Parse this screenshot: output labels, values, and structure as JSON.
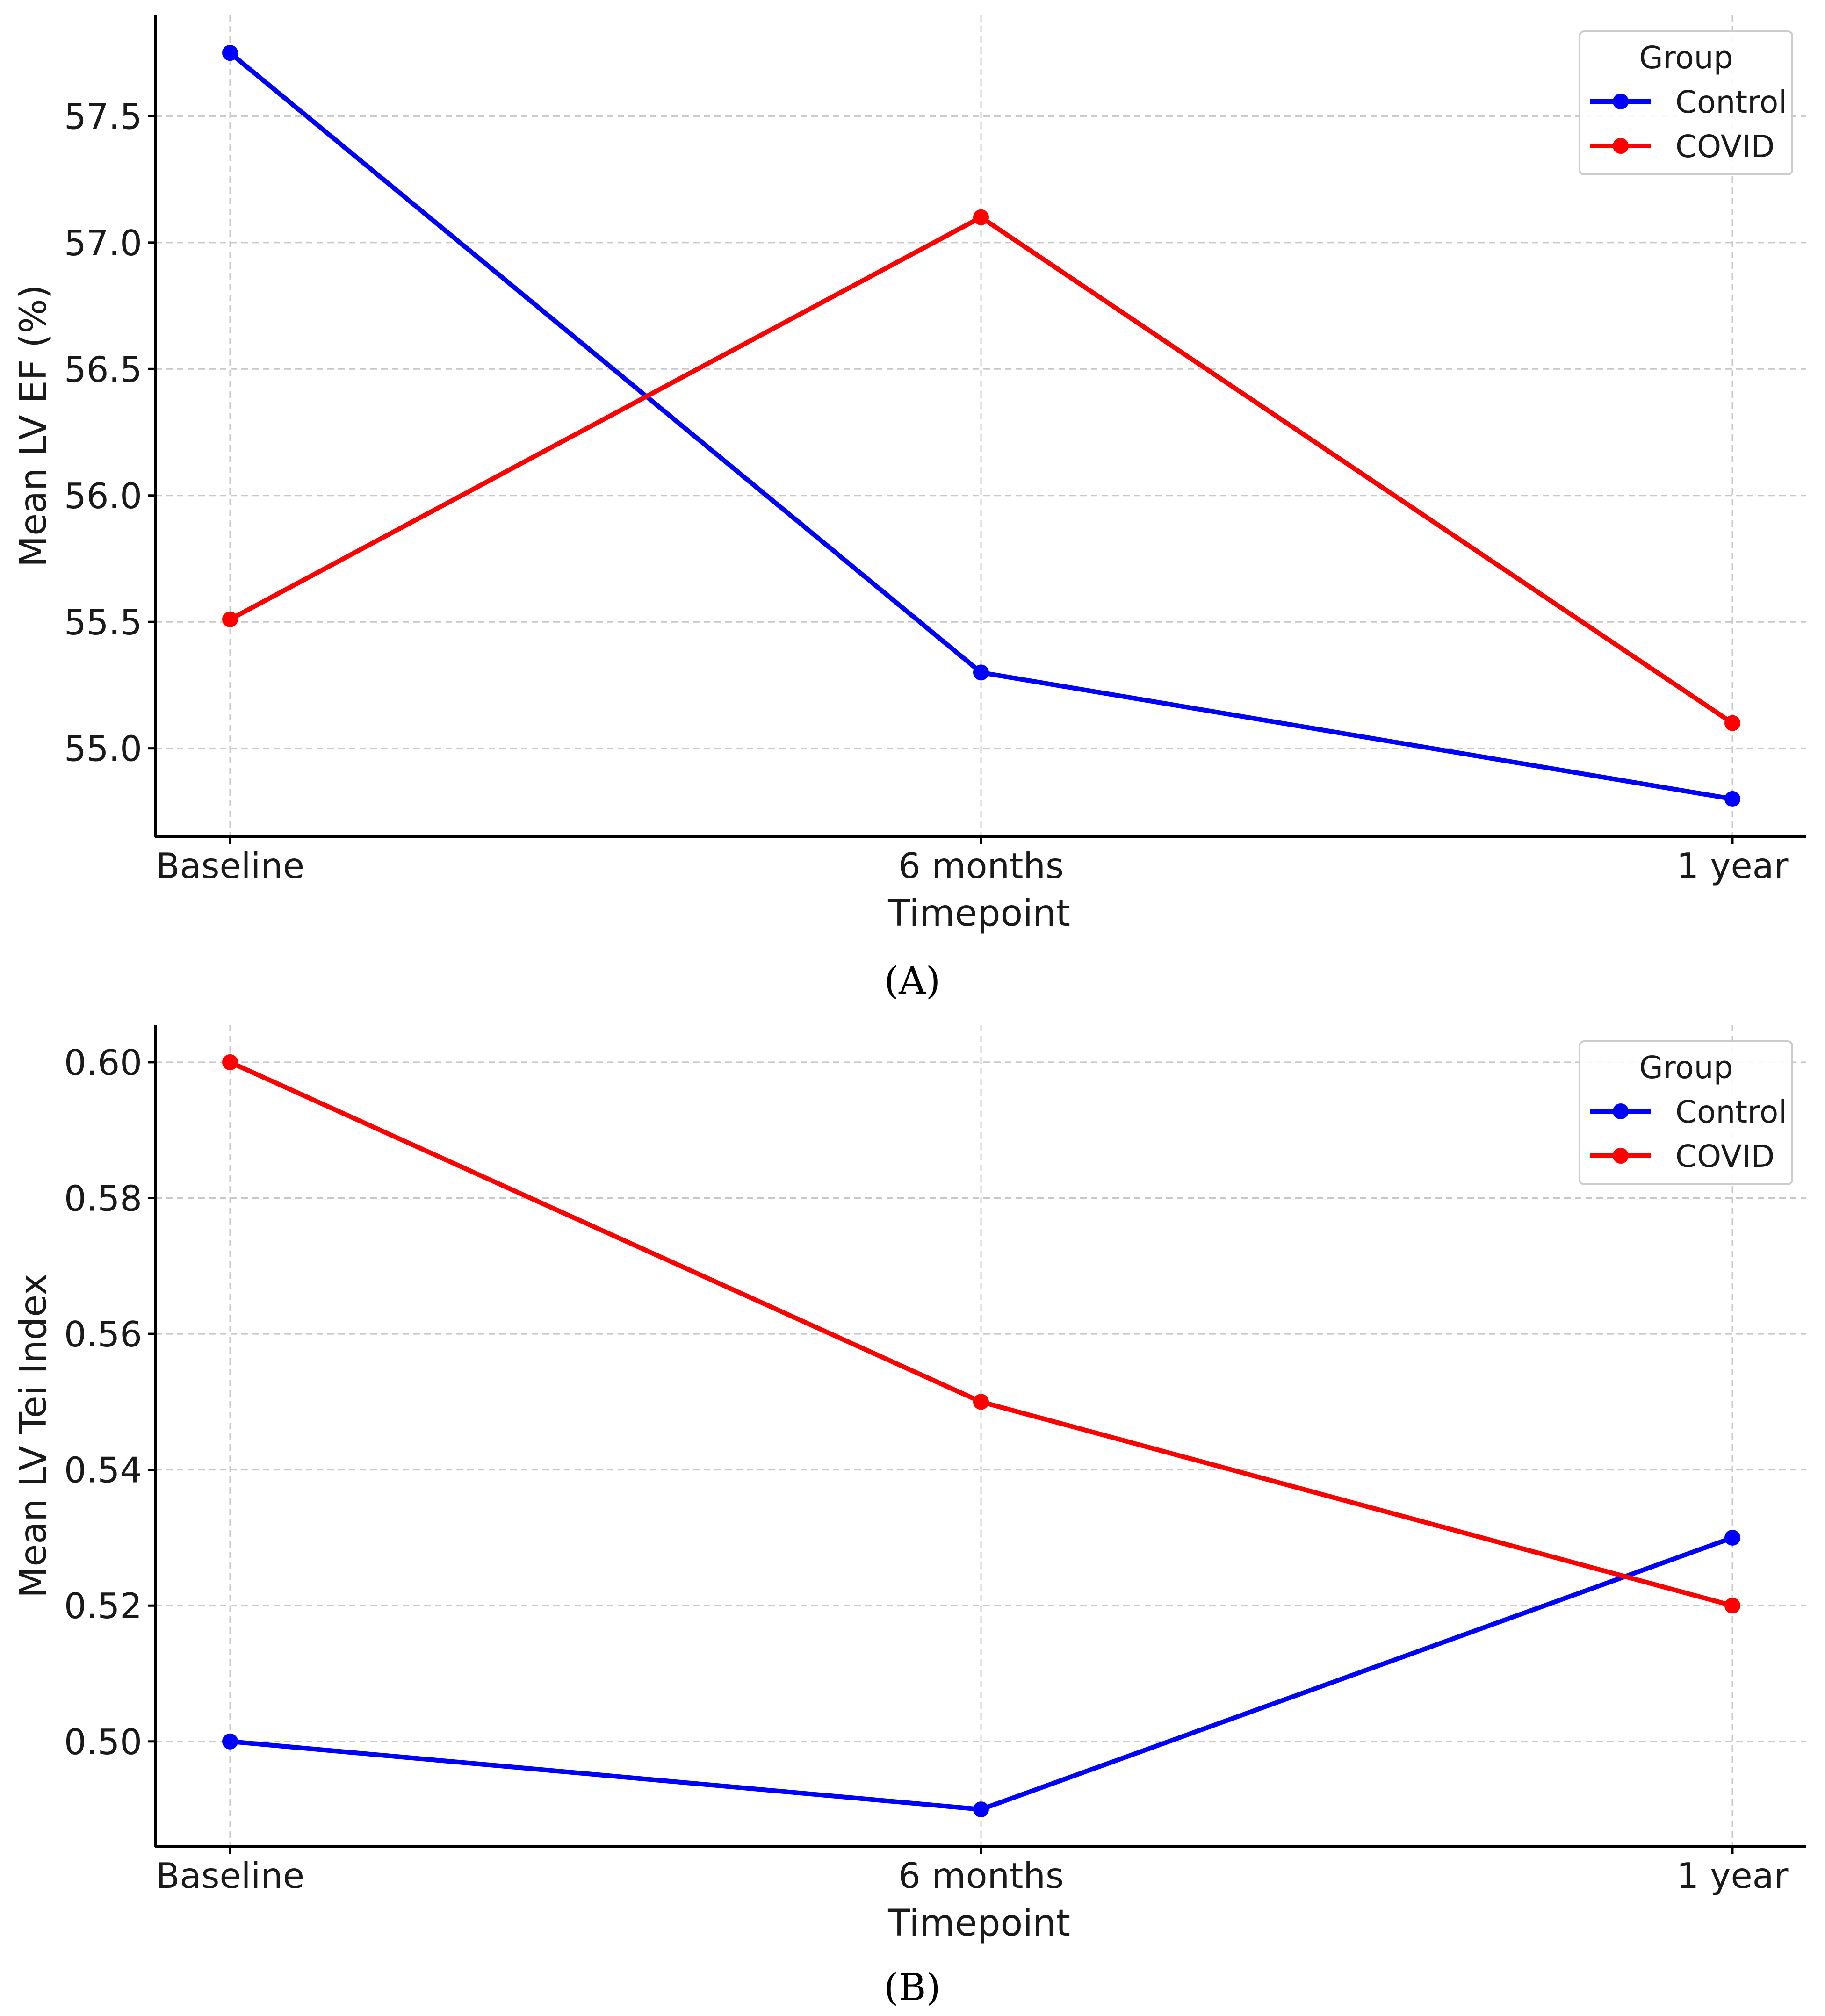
{
  "chart_data": [
    {
      "type": "line",
      "panel_label": "A",
      "categories": [
        "Baseline",
        "6 months",
        "1 year"
      ],
      "xlabel": "Timepoint",
      "ylabel": "Mean LV EF (%)",
      "ylim": [
        54.65,
        57.9
      ],
      "yticks": [
        55.0,
        55.5,
        56.0,
        56.5,
        57.0,
        57.5
      ],
      "ytick_decimals": 1,
      "grid": true,
      "legend": {
        "title": "Group",
        "placement": "top-right"
      },
      "series": [
        {
          "name": "Control",
          "color": "#0000ff",
          "values": [
            57.75,
            55.3,
            54.8
          ]
        },
        {
          "name": "COVID",
          "color": "#ff0000",
          "values": [
            55.51,
            57.1,
            55.1
          ]
        }
      ]
    },
    {
      "type": "line",
      "panel_label": "B",
      "categories": [
        "Baseline",
        "6 months",
        "1 year"
      ],
      "xlabel": "Timepoint",
      "ylabel": "Mean LV Tei Index",
      "ylim": [
        0.4845,
        0.6055
      ],
      "yticks": [
        0.5,
        0.52,
        0.54,
        0.56,
        0.58,
        0.6
      ],
      "ytick_decimals": 2,
      "grid": true,
      "legend": {
        "title": "Group",
        "placement": "top-right"
      },
      "series": [
        {
          "name": "Control",
          "color": "#0000ff",
          "values": [
            0.5,
            0.49,
            0.53
          ]
        },
        {
          "name": "COVID",
          "color": "#ff0000",
          "values": [
            0.6,
            0.55,
            0.52
          ]
        }
      ]
    }
  ]
}
